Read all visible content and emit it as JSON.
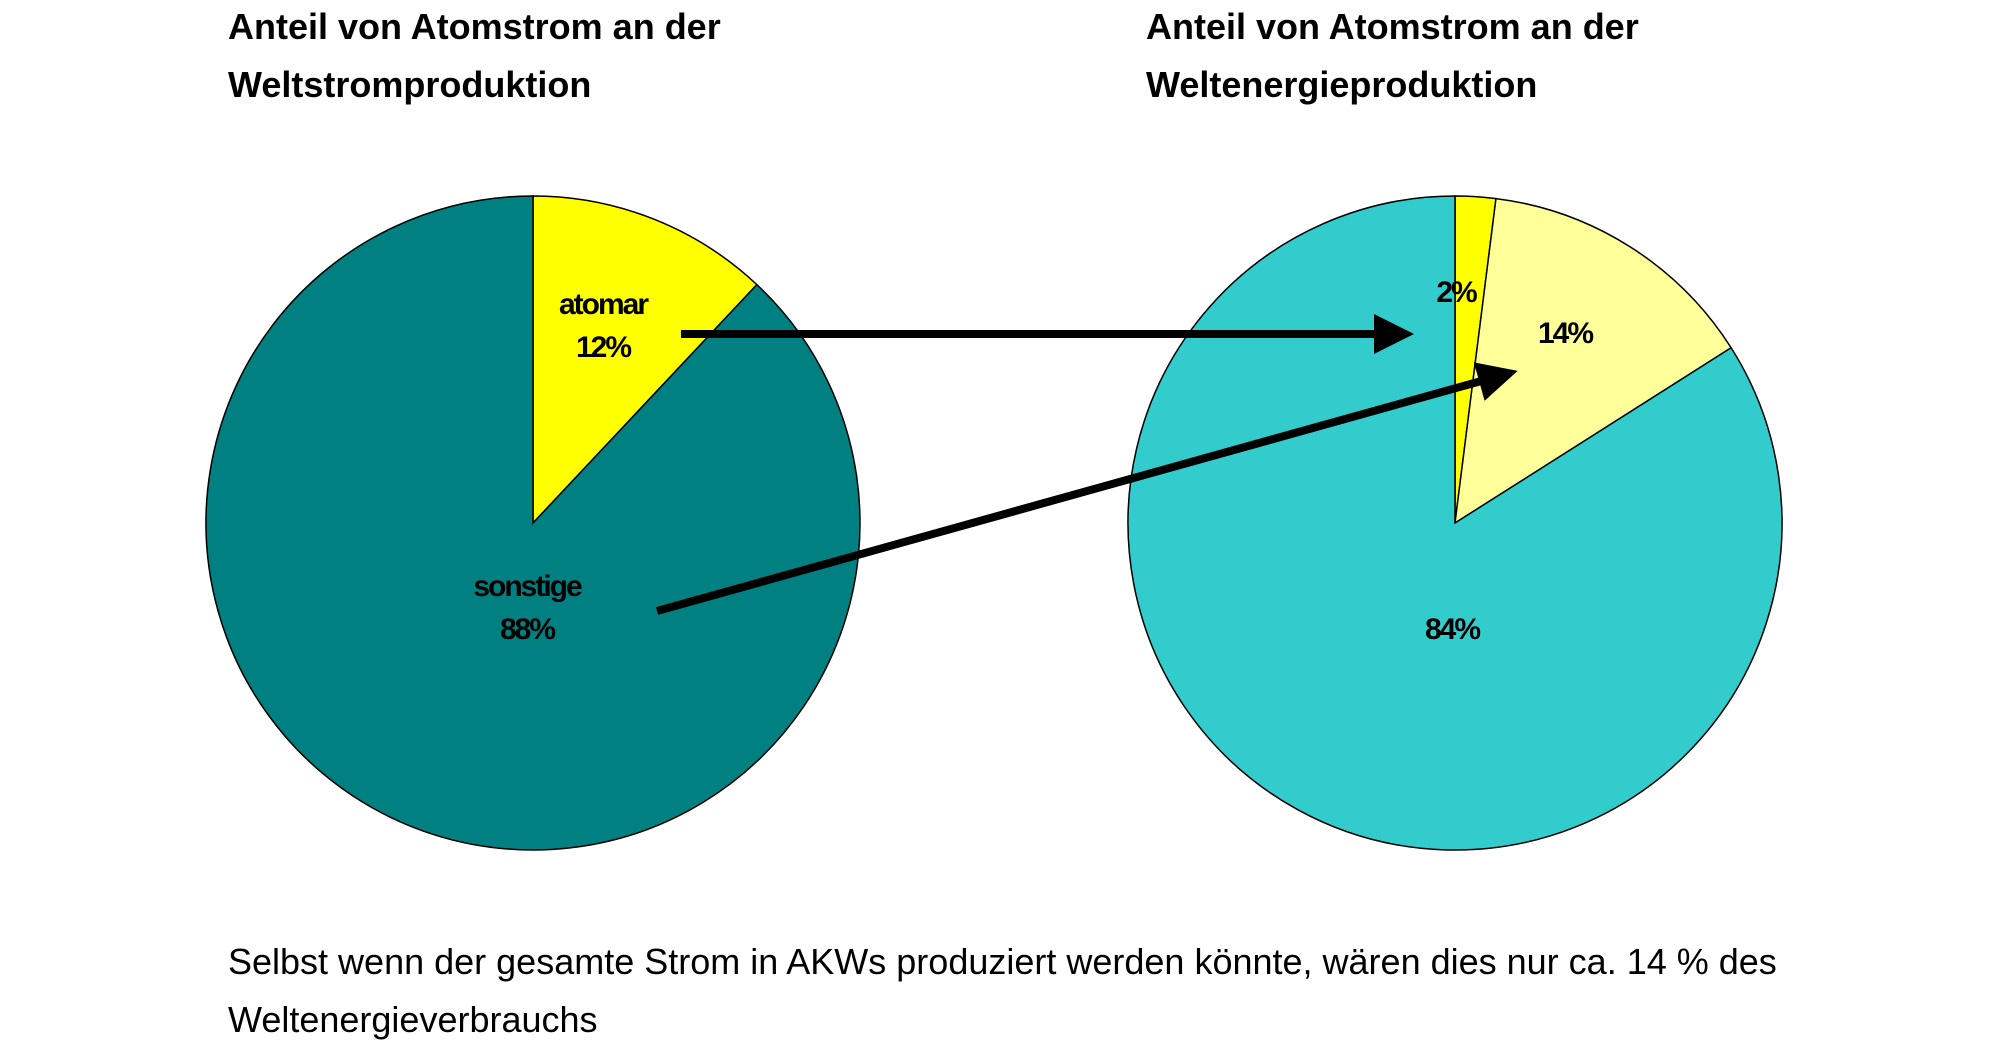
{
  "chart_data": [
    {
      "type": "pie",
      "title_lines": [
        "Anteil von Atomstrom an der",
        "Weltstromproduktion"
      ],
      "slices": [
        {
          "label": "atomar",
          "percent_label": "12%",
          "value": 12,
          "color": "#ffff00"
        },
        {
          "label": "sonstige",
          "percent_label": "88%",
          "value": 88,
          "color": "#008080"
        }
      ]
    },
    {
      "type": "pie",
      "title_lines": [
        "Anteil von Atomstrom an der",
        "Weltenergieproduktion"
      ],
      "slices": [
        {
          "label": "",
          "percent_label": "2%",
          "value": 2,
          "color": "#ffff00"
        },
        {
          "label": "",
          "percent_label": "14%",
          "value": 14,
          "color": "#ffff99"
        },
        {
          "label": "",
          "percent_label": "84%",
          "value": 84,
          "color": "#33cccc"
        }
      ]
    }
  ],
  "footer": {
    "line1": "Selbst wenn der gesamte Strom in AKWs produziert werden könnte, wären dies nur ca. 14 % des",
    "line2": "Weltenergieverbrauchs"
  }
}
